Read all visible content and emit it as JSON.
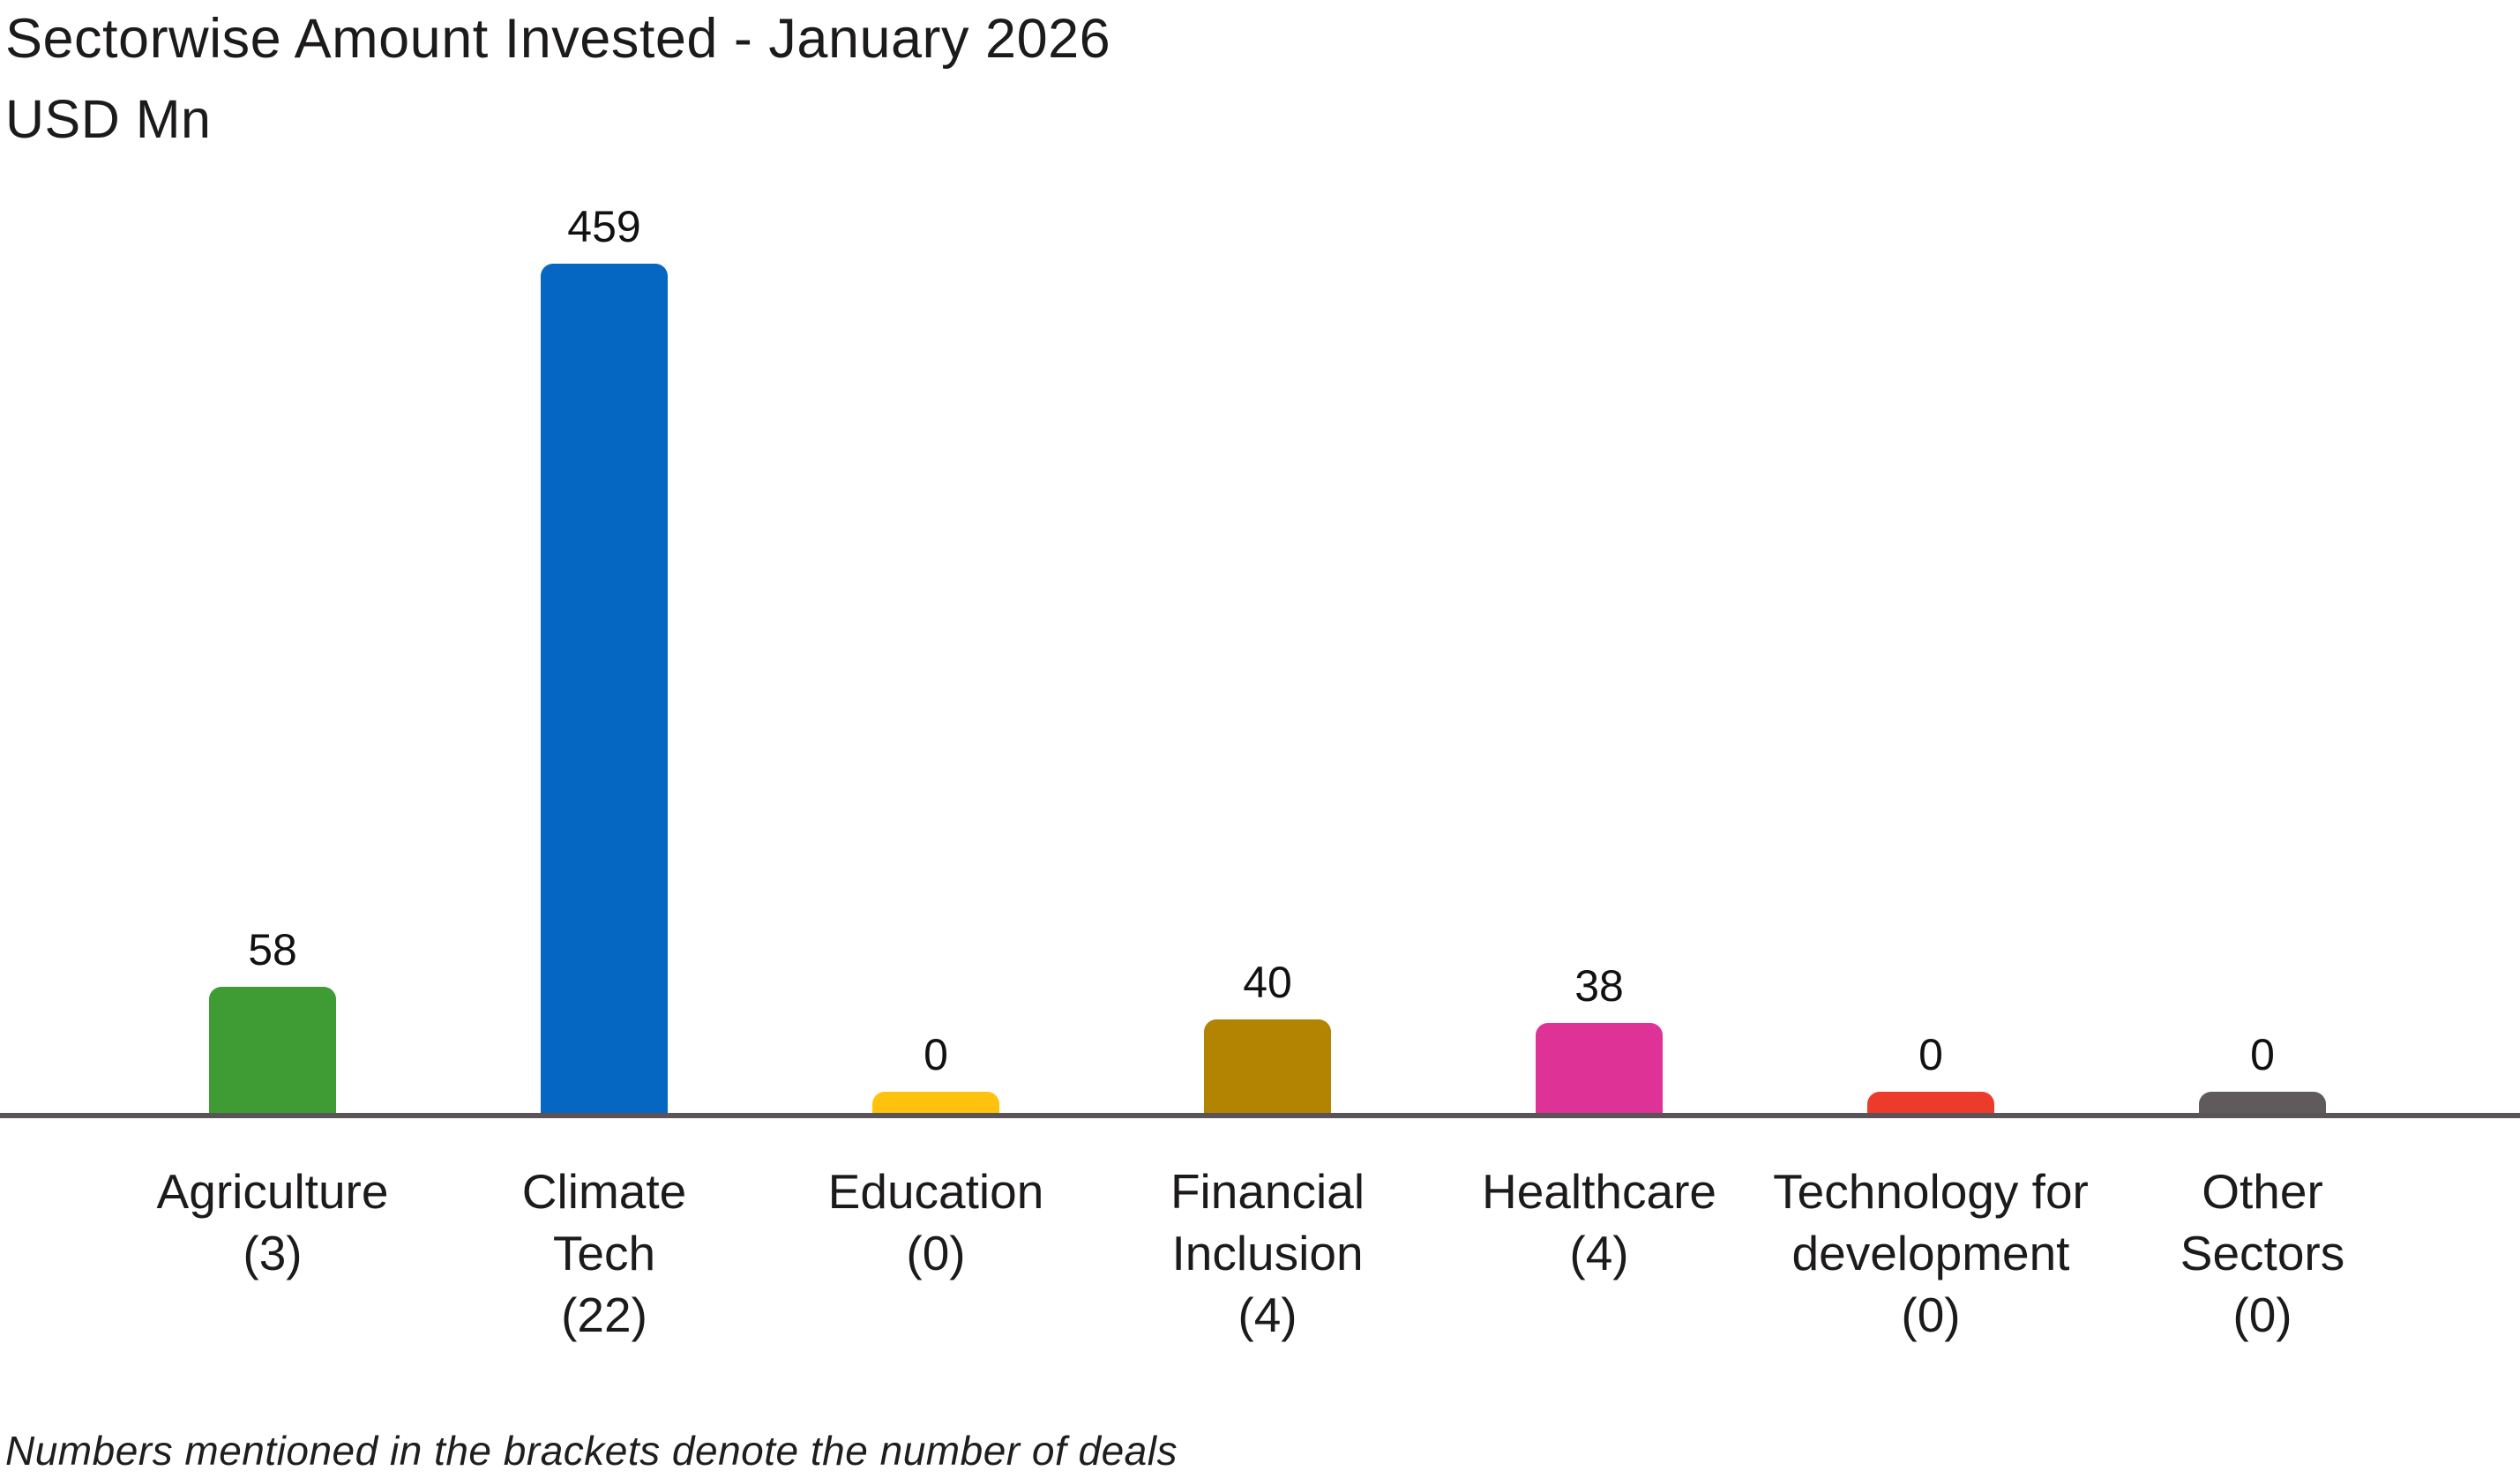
{
  "title": "Sectorwise Amount Invested - January 2026",
  "subtitle": "USD Mn",
  "footnote": "Numbers mentioned in the brackets denote the number of deals",
  "chart_data": {
    "type": "bar",
    "title": "Sectorwise Amount Invested - January 2026",
    "unit_label": "USD Mn",
    "xlabel": "",
    "ylabel": "USD Mn",
    "ylim": [
      0,
      470
    ],
    "grid": false,
    "legend": "none",
    "value_labels_shown": true,
    "axis_color": "#5A5458",
    "background_color": "#FFFFFF",
    "categories": [
      "Agriculture",
      "Climate Tech",
      "Education",
      "Financial Inclusion",
      "Healthcare",
      "Technology for development",
      "Other Sectors"
    ],
    "values": [
      58,
      459,
      0,
      40,
      38,
      0,
      0
    ],
    "deal_counts": [
      3,
      22,
      0,
      4,
      4,
      0,
      0
    ],
    "bars": [
      {
        "category": "Agriculture",
        "lines": [
          "Agriculture",
          "(3)"
        ],
        "value": 58,
        "value_label": "58",
        "deals": 3,
        "color": "#3F9C35"
      },
      {
        "category": "Climate Tech",
        "lines": [
          "Climate",
          "Tech",
          "(22)"
        ],
        "value": 459,
        "value_label": "459",
        "deals": 22,
        "color": "#0667C3"
      },
      {
        "category": "Education",
        "lines": [
          "Education",
          "(0)"
        ],
        "value": 0,
        "value_label": "0",
        "deals": 0,
        "color": "#FFC20D"
      },
      {
        "category": "Financial Inclusion",
        "lines": [
          "Financial",
          "Inclusion",
          "(4)"
        ],
        "value": 40,
        "value_label": "40",
        "deals": 4,
        "color": "#B28401"
      },
      {
        "category": "Healthcare",
        "lines": [
          "Healthcare",
          "(4)"
        ],
        "value": 38,
        "value_label": "38",
        "deals": 4,
        "color": "#DE3296"
      },
      {
        "category": "Technology for development",
        "lines": [
          "Technology for",
          "development",
          "(0)"
        ],
        "value": 0,
        "value_label": "0",
        "deals": 0,
        "color": "#ED3B2B"
      },
      {
        "category": "Other Sectors",
        "lines": [
          "Other",
          "Sectors",
          "(0)"
        ],
        "value": 0,
        "value_label": "0",
        "deals": 0,
        "color": "#5F5B5C"
      }
    ]
  }
}
